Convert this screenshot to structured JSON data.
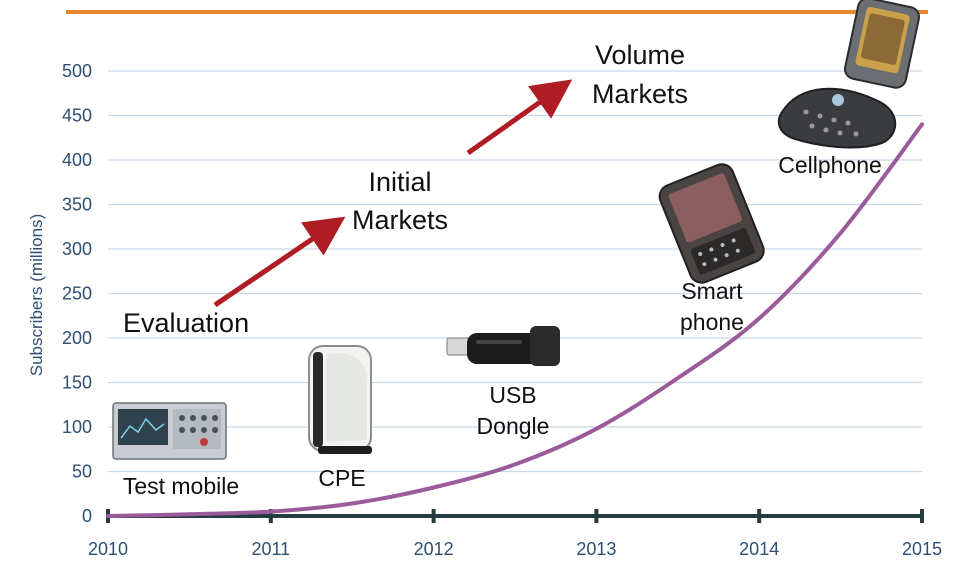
{
  "chart_data": {
    "type": "line",
    "ylabel": "Subscribers (millions)",
    "xlim": [
      2010,
      2015
    ],
    "ylim": [
      0,
      500
    ],
    "x_ticks": [
      "2010",
      "2011",
      "2012",
      "2013",
      "2014",
      "2015"
    ],
    "y_ticks": [
      "0",
      "50",
      "100",
      "150",
      "200",
      "250",
      "300",
      "350",
      "400",
      "450",
      "500"
    ],
    "grid": true,
    "series": [
      {
        "color": "#9b5b9b",
        "x": [
          2010,
          2010.5,
          2011,
          2011.5,
          2012,
          2012.5,
          2013,
          2013.5,
          2014,
          2014.5,
          2015
        ],
        "y": [
          0,
          2,
          5,
          14,
          32,
          58,
          98,
          155,
          222,
          318,
          440
        ]
      }
    ],
    "stages": [
      {
        "label": "Evaluation"
      },
      {
        "label": "Initial Markets",
        "lines": [
          "Initial",
          "Markets"
        ]
      },
      {
        "label": "Volume Markets",
        "lines": [
          "Volume",
          "Markets"
        ]
      }
    ],
    "devices": [
      {
        "label": "Test mobile",
        "lines": [
          "Test mobile"
        ],
        "icon": "test-equipment-icon"
      },
      {
        "label": "CPE",
        "lines": [
          "CPE"
        ],
        "icon": "cpe-router-icon"
      },
      {
        "label": "USB Dongle",
        "lines": [
          "USB",
          "Dongle"
        ],
        "icon": "usb-dongle-icon"
      },
      {
        "label": "Smart phone",
        "lines": [
          "Smart",
          "phone"
        ],
        "icon": "smartphone-icon"
      },
      {
        "label": "Cellphone",
        "lines": [
          "Cellphone"
        ],
        "icon": "flip-phone-icon"
      }
    ],
    "colors": {
      "grid": "#c9d7e8",
      "axis": "#243b3f",
      "tick_text": "#2e4f73",
      "arrow": "#b01c24",
      "top_rule": "#e8872e"
    }
  }
}
